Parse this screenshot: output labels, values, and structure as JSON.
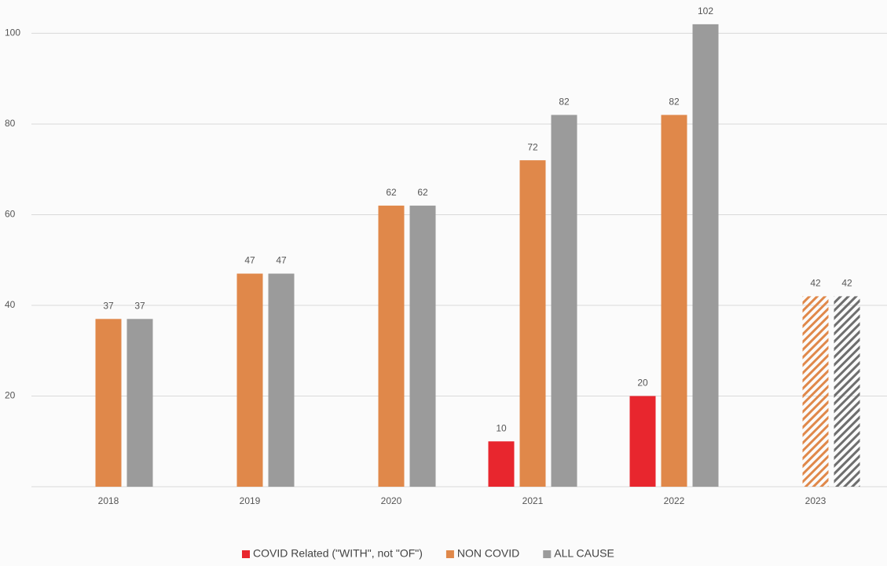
{
  "chart_data": {
    "type": "bar",
    "categories": [
      "2018",
      "2019",
      "2020",
      "2021",
      "2022",
      "2023"
    ],
    "series": [
      {
        "name": "COVID Related (\"WITH\", not \"OF\")",
        "color": "#e8262e",
        "values": [
          null,
          null,
          null,
          10,
          20,
          null
        ]
      },
      {
        "name": "NON COVID",
        "color": "#e0884a",
        "values": [
          37,
          47,
          62,
          72,
          82,
          42
        ]
      },
      {
        "name": "ALL CAUSE",
        "color": "#9b9b9b",
        "values": [
          37,
          47,
          62,
          82,
          102,
          42
        ]
      }
    ],
    "hatch": [
      false,
      false,
      false,
      false,
      false,
      true
    ],
    "ylim": [
      0,
      107
    ],
    "yticks": [
      20,
      40,
      60,
      80,
      100
    ],
    "grid": true,
    "legend": "bottom"
  }
}
